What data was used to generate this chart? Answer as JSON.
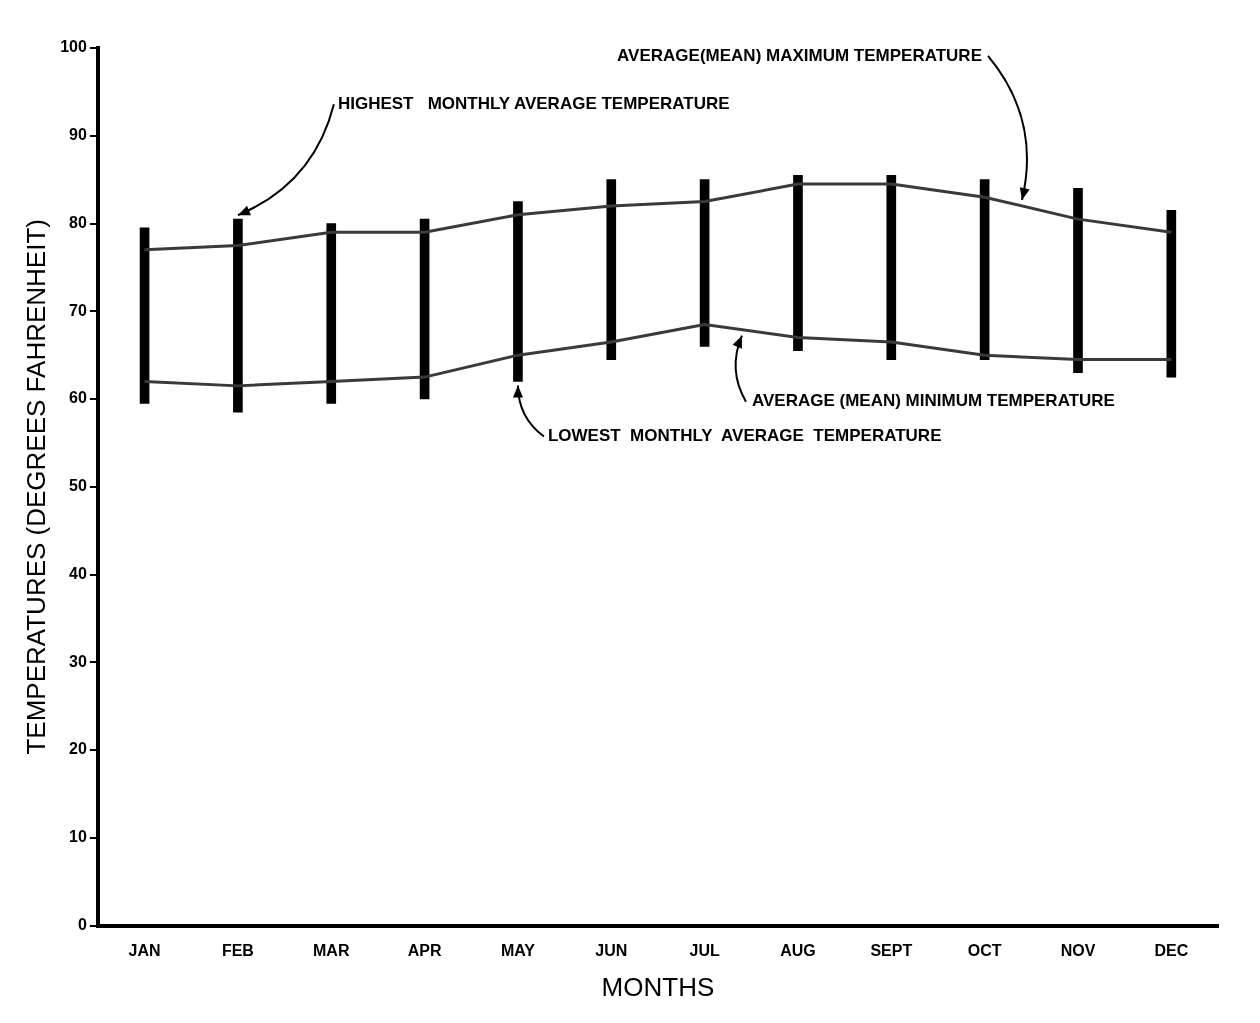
{
  "chart_data": {
    "type": "bar",
    "xlabel": "MONTHS",
    "ylabel": "TEMPERATURES (DEGREES FAHRENHEIT)",
    "categories": [
      "JAN",
      "FEB",
      "MAR",
      "APR",
      "MAY",
      "JUN",
      "JUL",
      "AUG",
      "SEPT",
      "OCT",
      "NOV",
      "DEC"
    ],
    "ylim": [
      0,
      100
    ],
    "yticks": [
      0,
      10,
      20,
      30,
      40,
      50,
      60,
      70,
      80,
      90,
      100
    ],
    "series": [
      {
        "color": "#000000",
        "base": [
          59.5,
          58.5,
          59.5,
          60,
          62,
          64.5,
          66,
          65.5,
          64.5,
          64.5,
          63,
          62.5
        ],
        "values": [
          20,
          22,
          20.5,
          20.5,
          20.5,
          20.5,
          19,
          20,
          21,
          20.5,
          21,
          19
        ]
      },
      {
        "type": "line",
        "name": "AVERAGE(MEAN) MAXIMUM TEMPERATURE",
        "color": "#3a3a3a",
        "values": [
          77,
          77.5,
          79,
          79,
          81,
          82,
          82.5,
          84.5,
          84.5,
          83,
          80.5,
          79
        ]
      },
      {
        "type": "line",
        "name": "AVERAGE (MEAN) MINIMUM TEMPERATURE",
        "color": "#3a3a3a",
        "values": [
          62,
          61.5,
          62,
          62.5,
          65,
          66.5,
          68.5,
          67,
          66.5,
          65,
          64.5,
          64.5
        ]
      }
    ],
    "annotations": [
      {
        "text": "HIGHEST   MONTHLY AVERAGE TEMPERATURE",
        "x": "FEB",
        "y": 80.5
      },
      {
        "text": "LOWEST  MONTHLY  AVERAGE  TEMPERATURE",
        "x": "MAY",
        "y": 62
      }
    ]
  }
}
